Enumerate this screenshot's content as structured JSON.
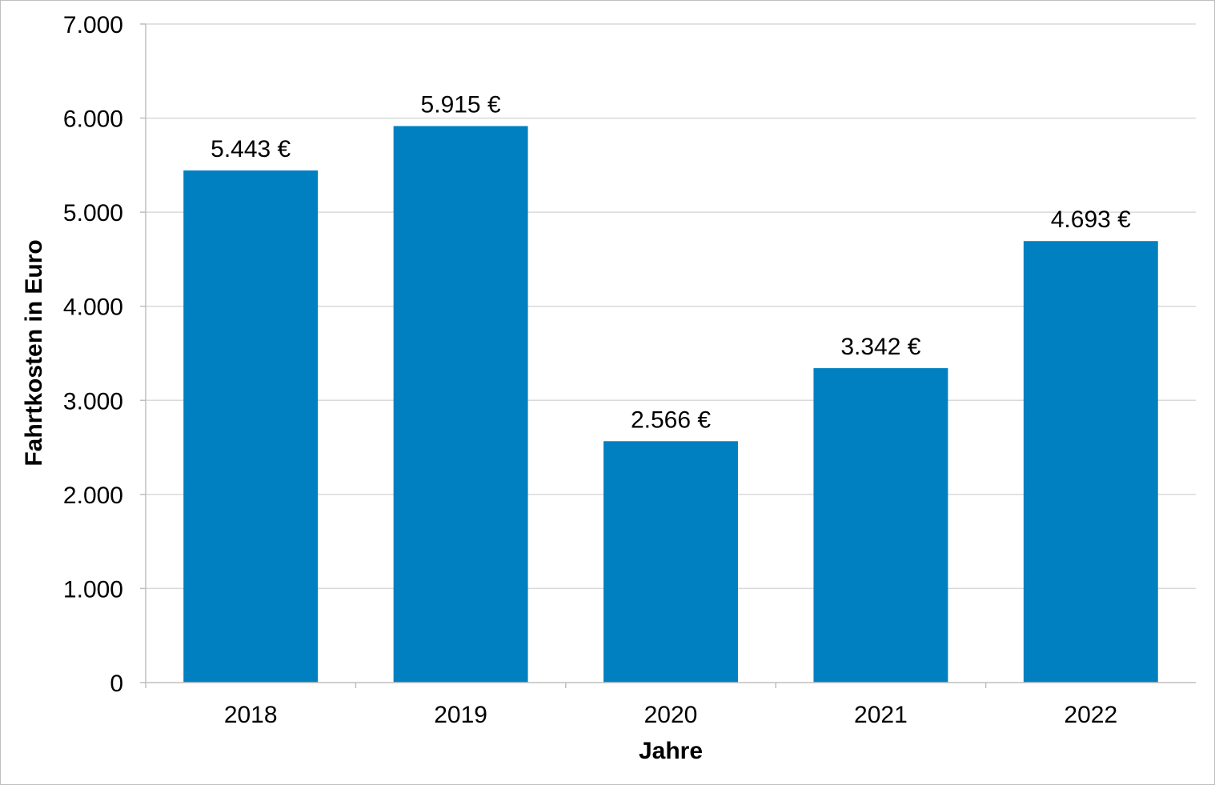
{
  "chart_data": {
    "type": "bar",
    "categories": [
      "2018",
      "2019",
      "2020",
      "2021",
      "2022"
    ],
    "values": [
      5443,
      5915,
      2566,
      3342,
      4693
    ],
    "data_labels": [
      "5.443 €",
      "5.915 €",
      "2.566 €",
      "3.342 €",
      "4.693 €"
    ],
    "xlabel": "Jahre",
    "ylabel": "Fahrtkosten in Euro",
    "ylim": [
      0,
      7000
    ],
    "y_ticks": [
      0,
      1000,
      2000,
      3000,
      4000,
      5000,
      6000,
      7000
    ],
    "y_tick_labels": [
      "0",
      "1.000",
      "2.000",
      "3.000",
      "4.000",
      "5.000",
      "6.000",
      "7.000"
    ],
    "grid": true,
    "bar_color": "#0080C0",
    "grid_color": "#d9d9d9"
  }
}
